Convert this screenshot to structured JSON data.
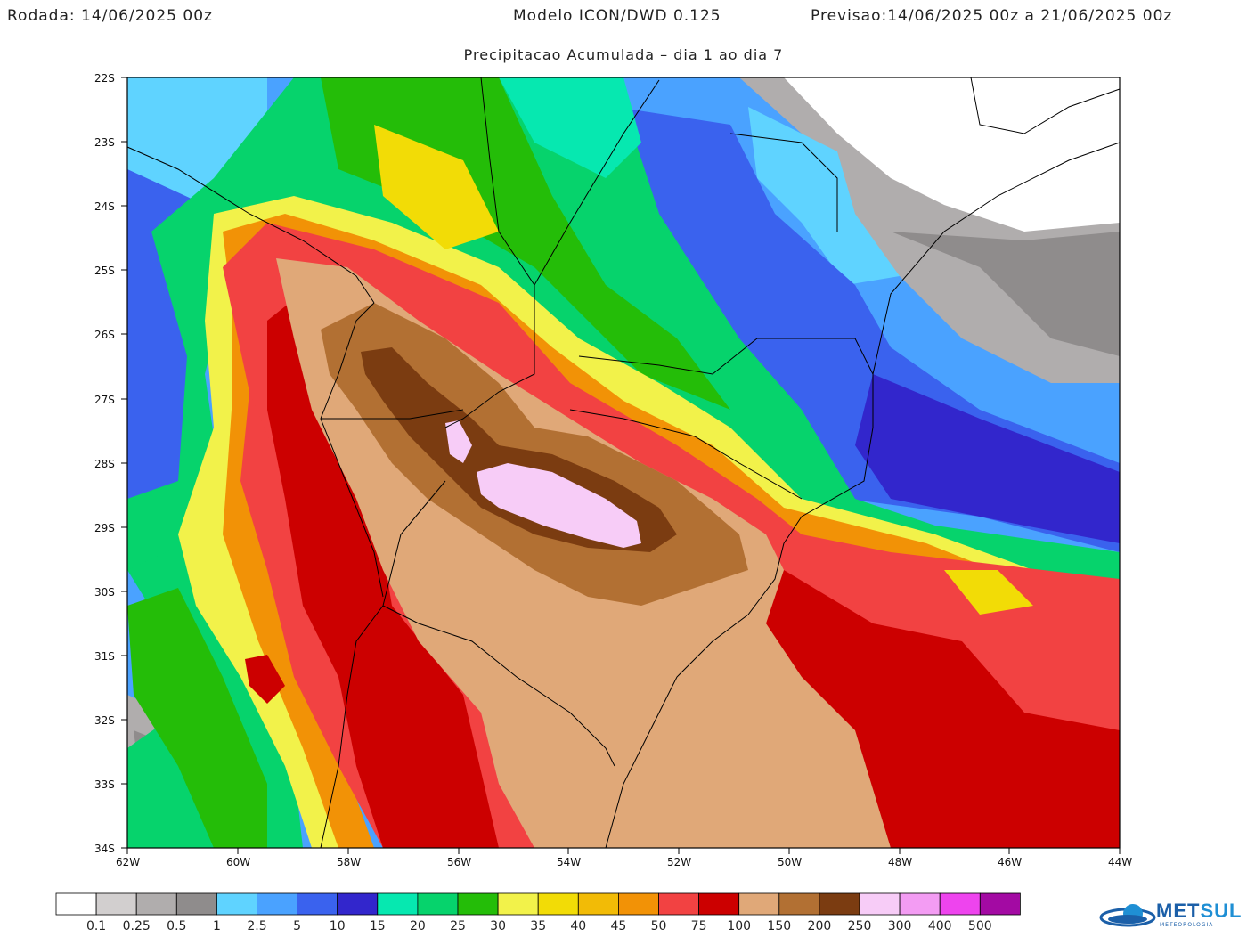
{
  "header": {
    "run": "Rodada: 14/06/2025 00z",
    "model": "Modelo ICON/DWD 0.125",
    "forecast": "Previsao:14/06/2025 00z a 21/06/2025 00z",
    "subtitle": "Precipitacao Acumulada – dia 1 ao dia 7"
  },
  "axes": {
    "lat_labels": [
      "22S",
      "23S",
      "24S",
      "25S",
      "26S",
      "27S",
      "28S",
      "29S",
      "30S",
      "31S",
      "32S",
      "33S",
      "34S"
    ],
    "lon_labels": [
      "62W",
      "60W",
      "58W",
      "56W",
      "54W",
      "52W",
      "50W",
      "48W",
      "46W",
      "44W"
    ]
  },
  "legend": {
    "levels": [
      "0.1",
      "0.25",
      "0.5",
      "1",
      "2.5",
      "5",
      "10",
      "15",
      "20",
      "25",
      "30",
      "35",
      "40",
      "45",
      "50",
      "75",
      "100",
      "150",
      "200",
      "250",
      "300",
      "400",
      "500"
    ],
    "colors": [
      "#ffffff",
      "#d2cfcf",
      "#b0adad",
      "#8f8c8c",
      "#5fd3ff",
      "#4aa2ff",
      "#3a62ee",
      "#3226cc",
      "#06e8b0",
      "#06d36c",
      "#24bd08",
      "#f2f24a",
      "#f2dc06",
      "#f2bb06",
      "#f29206",
      "#f24242",
      "#cc0000",
      "#e0a878",
      "#b27033",
      "#7b3c11",
      "#f7ccf7",
      "#f39cf3",
      "#ee44ee",
      "#a30aa3"
    ]
  },
  "logo": {
    "brand_a": "MET",
    "brand_b": "SUL",
    "tagline": "METEOROLOGIA"
  }
}
